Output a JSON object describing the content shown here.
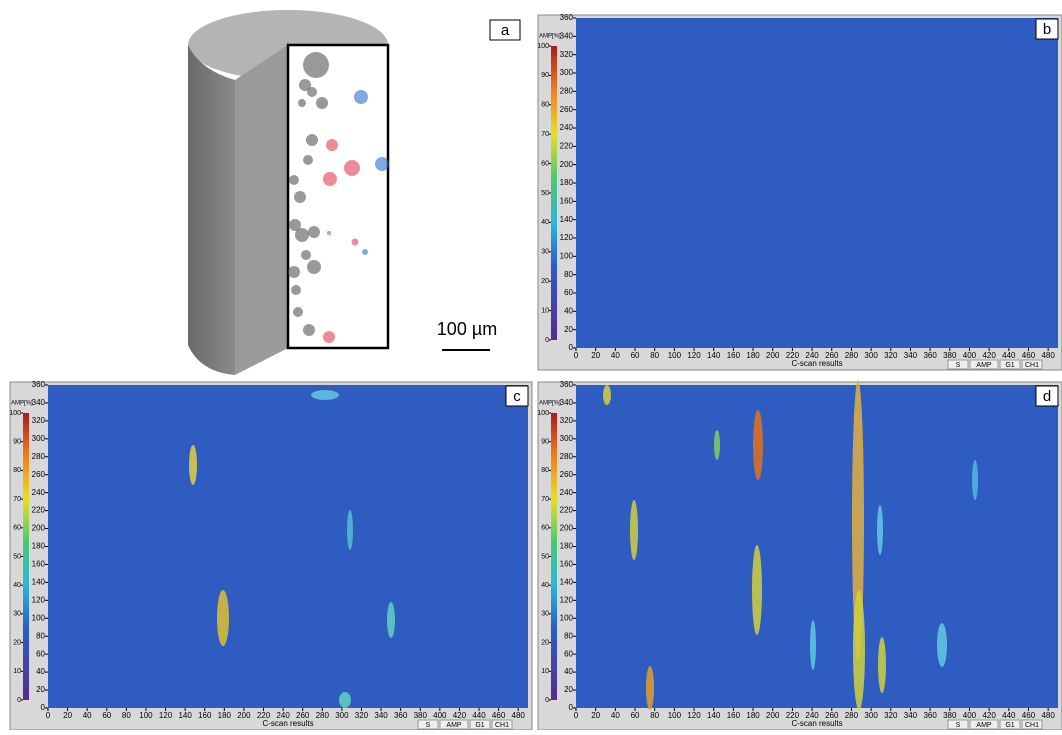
{
  "panel_a": {
    "label": "a",
    "scale_bar": "100 µm"
  },
  "scan_panels": [
    {
      "label": "b"
    },
    {
      "label": "c"
    },
    {
      "label": "d"
    }
  ],
  "scan_axes": {
    "xlim": [
      0,
      490
    ],
    "ylim": [
      0,
      360
    ],
    "amp_lim": [
      0,
      100
    ],
    "x_ticks": [
      0,
      20,
      40,
      60,
      80,
      100,
      120,
      140,
      160,
      180,
      200,
      220,
      240,
      260,
      280,
      300,
      320,
      340,
      360,
      380,
      400,
      420,
      440,
      460,
      480
    ],
    "y_ticks": [
      0,
      20,
      40,
      60,
      80,
      100,
      120,
      140,
      160,
      180,
      200,
      220,
      240,
      260,
      280,
      300,
      320,
      340,
      360
    ],
    "amp_ticks": [
      0,
      10,
      20,
      30,
      40,
      50,
      60,
      70,
      80,
      90,
      100
    ],
    "amp_unit": "AMP[%]",
    "x_caption": "C-scan results",
    "status": [
      "S",
      "AMP",
      "G1",
      "CH1"
    ]
  }
}
